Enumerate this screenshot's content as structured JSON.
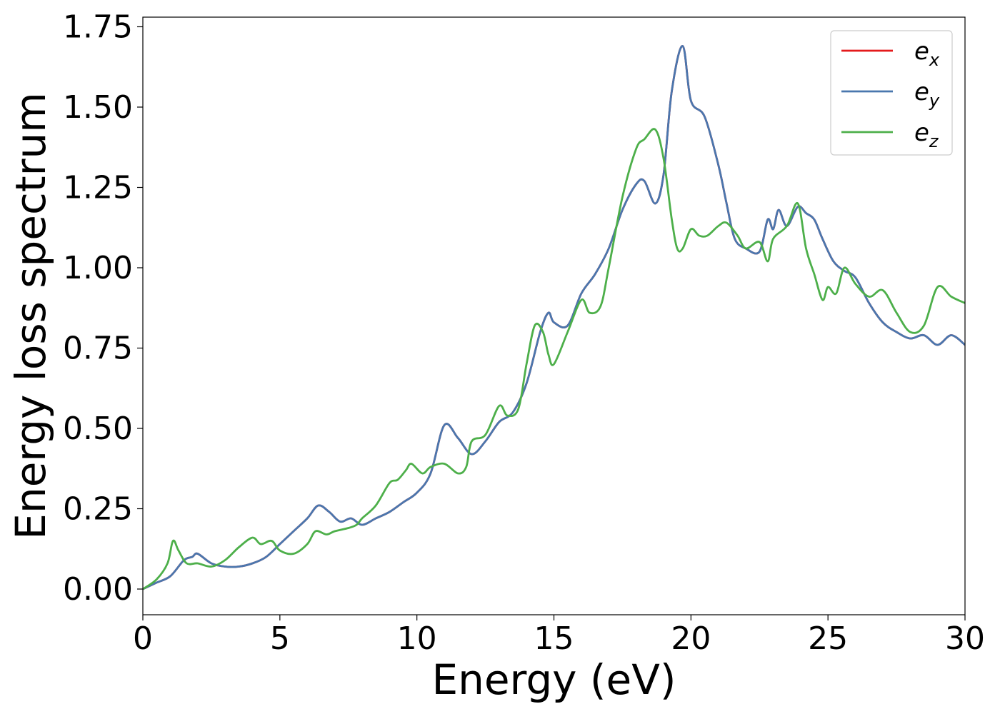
{
  "chart_data": {
    "type": "line",
    "title": "",
    "xlabel": "Energy (eV)",
    "ylabel": "Energy loss spectrum",
    "xlim": [
      0,
      30
    ],
    "ylim": [
      -0.08,
      1.78
    ],
    "xticks": [
      0,
      5,
      10,
      15,
      20,
      25,
      30
    ],
    "xtick_labels": [
      "0",
      "5",
      "10",
      "15",
      "20",
      "25",
      "30"
    ],
    "yticks": [
      0.0,
      0.25,
      0.5,
      0.75,
      1.0,
      1.25,
      1.5,
      1.75
    ],
    "ytick_labels": [
      "0.00",
      "0.25",
      "0.50",
      "0.75",
      "1.00",
      "1.25",
      "1.50",
      "1.75"
    ],
    "grid": false,
    "legend_position": "top-right",
    "series": [
      {
        "name": "e_x",
        "base": "e",
        "sub": "x",
        "color": "#e41a1c",
        "x": [
          0,
          0.5,
          1.0,
          1.5,
          1.8,
          2.0,
          2.5,
          3.0,
          3.5,
          4.0,
          4.5,
          5.0,
          5.5,
          6.0,
          6.4,
          6.8,
          7.2,
          7.6,
          8.0,
          8.5,
          9.0,
          9.5,
          10.0,
          10.5,
          11.0,
          11.5,
          12.0,
          12.5,
          13.0,
          13.5,
          14.0,
          14.5,
          14.8,
          15.0,
          15.5,
          16.0,
          16.5,
          17.0,
          17.5,
          18.0,
          18.3,
          18.7,
          19.0,
          19.3,
          19.7,
          20.0,
          20.5,
          21.0,
          21.3,
          21.6,
          22.0,
          22.5,
          22.8,
          23.0,
          23.2,
          23.5,
          23.9,
          24.2,
          24.5,
          24.8,
          25.2,
          25.6,
          26.0,
          26.5,
          27.0,
          27.5,
          28.0,
          28.5,
          29.0,
          29.5,
          30.0
        ],
        "y": [
          0.0,
          0.02,
          0.04,
          0.09,
          0.1,
          0.11,
          0.08,
          0.07,
          0.07,
          0.08,
          0.1,
          0.14,
          0.18,
          0.22,
          0.26,
          0.24,
          0.21,
          0.22,
          0.2,
          0.22,
          0.24,
          0.27,
          0.3,
          0.36,
          0.51,
          0.47,
          0.42,
          0.46,
          0.52,
          0.55,
          0.64,
          0.8,
          0.86,
          0.83,
          0.82,
          0.92,
          0.98,
          1.06,
          1.18,
          1.26,
          1.27,
          1.2,
          1.29,
          1.55,
          1.69,
          1.52,
          1.47,
          1.32,
          1.2,
          1.09,
          1.06,
          1.05,
          1.15,
          1.12,
          1.18,
          1.13,
          1.19,
          1.17,
          1.15,
          1.09,
          1.02,
          0.99,
          0.97,
          0.89,
          0.83,
          0.8,
          0.78,
          0.79,
          0.76,
          0.79,
          0.76
        ]
      },
      {
        "name": "e_y",
        "base": "e",
        "sub": "y",
        "color": "#4a77ae",
        "x": [
          0,
          0.5,
          1.0,
          1.5,
          1.8,
          2.0,
          2.5,
          3.0,
          3.5,
          4.0,
          4.5,
          5.0,
          5.5,
          6.0,
          6.4,
          6.8,
          7.2,
          7.6,
          8.0,
          8.5,
          9.0,
          9.5,
          10.0,
          10.5,
          11.0,
          11.5,
          12.0,
          12.5,
          13.0,
          13.5,
          14.0,
          14.5,
          14.8,
          15.0,
          15.5,
          16.0,
          16.5,
          17.0,
          17.5,
          18.0,
          18.3,
          18.7,
          19.0,
          19.3,
          19.7,
          20.0,
          20.5,
          21.0,
          21.3,
          21.6,
          22.0,
          22.5,
          22.8,
          23.0,
          23.2,
          23.5,
          23.9,
          24.2,
          24.5,
          24.8,
          25.2,
          25.6,
          26.0,
          26.5,
          27.0,
          27.5,
          28.0,
          28.5,
          29.0,
          29.5,
          30.0
        ],
        "y": [
          0.0,
          0.02,
          0.04,
          0.09,
          0.1,
          0.11,
          0.08,
          0.07,
          0.07,
          0.08,
          0.1,
          0.14,
          0.18,
          0.22,
          0.26,
          0.24,
          0.21,
          0.22,
          0.2,
          0.22,
          0.24,
          0.27,
          0.3,
          0.36,
          0.51,
          0.47,
          0.42,
          0.46,
          0.52,
          0.55,
          0.64,
          0.8,
          0.86,
          0.83,
          0.82,
          0.92,
          0.98,
          1.06,
          1.18,
          1.26,
          1.27,
          1.2,
          1.29,
          1.55,
          1.69,
          1.52,
          1.47,
          1.32,
          1.2,
          1.09,
          1.06,
          1.05,
          1.15,
          1.12,
          1.18,
          1.13,
          1.19,
          1.17,
          1.15,
          1.09,
          1.02,
          0.99,
          0.97,
          0.89,
          0.83,
          0.8,
          0.78,
          0.79,
          0.76,
          0.79,
          0.76
        ]
      },
      {
        "name": "e_z",
        "base": "e",
        "sub": "z",
        "color": "#4daf4a",
        "x": [
          0,
          0.5,
          0.9,
          1.1,
          1.3,
          1.6,
          2.0,
          2.5,
          3.0,
          3.5,
          4.0,
          4.3,
          4.7,
          5.0,
          5.5,
          6.0,
          6.3,
          6.7,
          7.0,
          7.5,
          7.8,
          8.0,
          8.5,
          9.0,
          9.3,
          9.6,
          9.8,
          10.2,
          10.5,
          11.0,
          11.5,
          11.8,
          12.0,
          12.5,
          13.0,
          13.3,
          13.7,
          14.0,
          14.3,
          14.6,
          14.8,
          15.0,
          15.5,
          16.0,
          16.3,
          16.7,
          17.0,
          17.5,
          18.0,
          18.3,
          18.7,
          19.0,
          19.3,
          19.5,
          19.7,
          20.0,
          20.3,
          20.6,
          21.0,
          21.3,
          21.7,
          22.0,
          22.5,
          22.8,
          23.0,
          23.5,
          23.9,
          24.2,
          24.5,
          24.8,
          25.0,
          25.3,
          25.6,
          26.0,
          26.5,
          27.0,
          27.5,
          28.0,
          28.5,
          29.0,
          29.5,
          30.0
        ],
        "y": [
          0.0,
          0.03,
          0.08,
          0.15,
          0.12,
          0.08,
          0.08,
          0.07,
          0.09,
          0.13,
          0.16,
          0.14,
          0.15,
          0.12,
          0.11,
          0.14,
          0.18,
          0.17,
          0.18,
          0.19,
          0.2,
          0.22,
          0.26,
          0.33,
          0.34,
          0.37,
          0.39,
          0.36,
          0.38,
          0.39,
          0.36,
          0.38,
          0.46,
          0.48,
          0.57,
          0.54,
          0.56,
          0.7,
          0.82,
          0.8,
          0.73,
          0.7,
          0.8,
          0.9,
          0.86,
          0.88,
          1.0,
          1.22,
          1.37,
          1.4,
          1.43,
          1.34,
          1.15,
          1.06,
          1.06,
          1.12,
          1.1,
          1.1,
          1.13,
          1.14,
          1.1,
          1.06,
          1.08,
          1.02,
          1.09,
          1.13,
          1.2,
          1.06,
          0.98,
          0.9,
          0.94,
          0.92,
          1.0,
          0.95,
          0.91,
          0.93,
          0.86,
          0.8,
          0.82,
          0.94,
          0.91,
          0.89
        ]
      }
    ]
  }
}
